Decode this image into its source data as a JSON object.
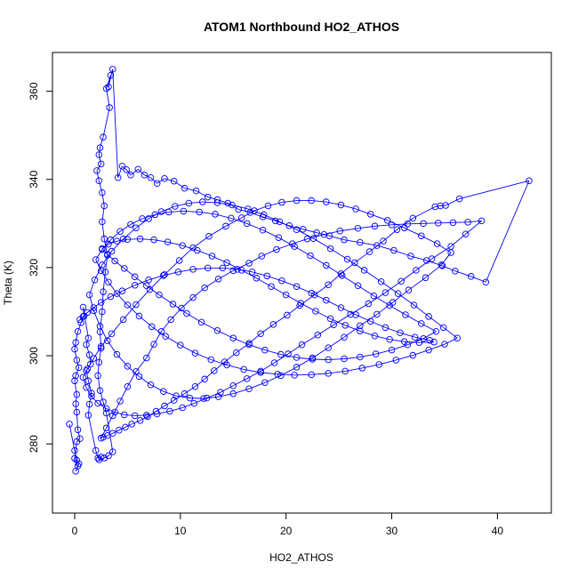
{
  "chart_data": {
    "type": "line",
    "title": "ATOM1 Northbound HO2_ATHOS",
    "xlabel": "HO2_ATHOS",
    "ylabel": "Theta (K)",
    "xlim": [
      -2.1,
      45.1
    ],
    "ylim": [
      264.3,
      368.8
    ],
    "xticks": [
      "0",
      "10",
      "20",
      "30",
      "40"
    ],
    "yticks": [
      "280",
      "300",
      "320",
      "340",
      "360"
    ],
    "grid": false,
    "legend": "none",
    "series_color": "#0000ff",
    "series": [
      {
        "markers": "open-circle",
        "x": [
          -0.5,
          0.0,
          0.2,
          0.4,
          0.1,
          0.3,
          0.0,
          0.2,
          0.5,
          0.3,
          0.2,
          0.1,
          0.2,
          0.0,
          0.1,
          0.4,
          0.2,
          0.0,
          0.1,
          0.3,
          0.6,
          0.9,
          0.8,
          1.3,
          1.1,
          1.4,
          1.5,
          1.1,
          1.3,
          1.6,
          1.4,
          1.3,
          2.0,
          2.2,
          2.5,
          2.3,
          2.8,
          3.2,
          3.6,
          3.0,
          2.7,
          2.4,
          2.2,
          2.3,
          2.5,
          2.4,
          2.6,
          2.7,
          2.9,
          3.1,
          2.8,
          2.6,
          2.8,
          2.6,
          2.3,
          2.1,
          2.5,
          2.3,
          2.4,
          2.7,
          3.3,
          3.0,
          3.4,
          3.2,
          3.6,
          4.1,
          4.5,
          4.9,
          5.3,
          6.0,
          6.6,
          7.2,
          7.8,
          8.5,
          9.4,
          10.4,
          11.5,
          12.6,
          13.5,
          14.5,
          15.5,
          16.6,
          17.8,
          19.0,
          20.3,
          21.6,
          22.9,
          24.1,
          25.5,
          27.0,
          28.6,
          30.2,
          31.8,
          33.3,
          34.8,
          36.0,
          37.5,
          38.9,
          43.0,
          36.4,
          35.1,
          34.6,
          34.1,
          32.0,
          30.5,
          29.2,
          27.9,
          26.5,
          25.2,
          24.0,
          22.7,
          21.3,
          20.1,
          18.8,
          17.6,
          16.5,
          15.3,
          14.2,
          13.2,
          12.3,
          11.4,
          10.4,
          9.4,
          8.5,
          7.7,
          6.9,
          6.2,
          5.4,
          4.8,
          4.2,
          3.6,
          3.1,
          2.7,
          2.5,
          3.0,
          3.6,
          4.3,
          5.0,
          5.8,
          6.8,
          7.5,
          8.2,
          9.1,
          10.1,
          11.2,
          12.3,
          13.6,
          15.0,
          16.5,
          17.7,
          19.1,
          20.6,
          22.0,
          23.6,
          25.1,
          26.8,
          28.4,
          30.0,
          31.5,
          33.0,
          34.4,
          35.8,
          37.2,
          38.5,
          37.0,
          35.6,
          33.8,
          32.3,
          30.9,
          29.4,
          27.8,
          26.1,
          24.5,
          23.0,
          21.5,
          20.2,
          18.9,
          17.6,
          16.3,
          15.0,
          13.8,
          12.5,
          11.3,
          10.2,
          9.0,
          7.8,
          6.8,
          5.7,
          4.7,
          3.8,
          3.0,
          2.2,
          1.6,
          1.1,
          0.8,
          1.2,
          1.8,
          2.5,
          3.5,
          4.6,
          5.8,
          7.1,
          8.5,
          9.9,
          11.2,
          12.7,
          14.3,
          15.8,
          17.0,
          18.3,
          19.6,
          21.0,
          22.4,
          23.8,
          25.2,
          26.6,
          28.0,
          29.6,
          31.2,
          32.8,
          34.3,
          35.6,
          34.7,
          33.2,
          31.6,
          30.1,
          28.6,
          27.0,
          25.5,
          24.0,
          22.5,
          21.0,
          19.5,
          18.0,
          16.5,
          15.0,
          13.6,
          12.2,
          10.9,
          9.6,
          8.4,
          7.2,
          6.1,
          5.0,
          4.0,
          3.1,
          2.4,
          1.8,
          1.4,
          1.9,
          2.6,
          3.5,
          4.6,
          5.8,
          7.0,
          8.2,
          9.5,
          10.8,
          12.1,
          13.5,
          14.9,
          16.4,
          17.9,
          19.4,
          21.0,
          22.6,
          24.2,
          25.8,
          27.4,
          29.0,
          30.6,
          32.1,
          33.5,
          34.9,
          36.2,
          35.0,
          33.5,
          32.0,
          30.4,
          28.8,
          27.2,
          25.6,
          24.0,
          22.4,
          20.8,
          19.2,
          17.6,
          16.0,
          14.4,
          12.9,
          11.4,
          10.0,
          8.6,
          7.3,
          6.1,
          5.0,
          4.0,
          3.2,
          2.5,
          2.0,
          2.6,
          3.4,
          4.3,
          5.3,
          6.4,
          7.6,
          8.9,
          10.3,
          11.8,
          13.3,
          14.8,
          16.3,
          17.8,
          19.3,
          20.8,
          22.3,
          23.8,
          25.3,
          26.8,
          28.3,
          29.8,
          31.3,
          32.8,
          34.2,
          33.0,
          31.5,
          30.0,
          28.5,
          27.0,
          25.5,
          24.0,
          22.5,
          21.0,
          19.5,
          18.0,
          16.5,
          15.0,
          13.5,
          12.0,
          10.6,
          9.3,
          8.0,
          6.8,
          5.7,
          4.7,
          3.8,
          3.1,
          2.6,
          3.2,
          4.0,
          5.0,
          6.2,
          7.5,
          8.8,
          10.2,
          11.6,
          13.0,
          14.4,
          15.8,
          17.2,
          18.6,
          20.0,
          21.4,
          22.8,
          24.2,
          25.6,
          27.0,
          28.4,
          29.8,
          31.2,
          32.6,
          34.0,
          33.6,
          32.2,
          30.8,
          29.4,
          28.0,
          26.6,
          25.2,
          23.8,
          22.4,
          21.0,
          19.6,
          18.2,
          16.8,
          15.4,
          14.0,
          12.6,
          11.2,
          9.8,
          8.4,
          7.0,
          5.7,
          4.5,
          3.4,
          2.5,
          1.8,
          1.2,
          0.8,
          0.5
        ],
        "y": [
          284.5,
          278.5,
          276.3,
          275.5,
          273.8,
          275.0,
          276.7,
          280.5,
          281.2,
          283.2,
          287.2,
          289.1,
          291.2,
          294.3,
          295.5,
          297.3,
          299.0,
          301.5,
          303.0,
          305.5,
          307.5,
          309.0,
          311.0,
          304.0,
          302.5,
          300.2,
          298.1,
          296.6,
          294.3,
          291.5,
          289.0,
          286.5,
          278.5,
          276.8,
          277.0,
          276.4,
          276.8,
          277.3,
          278.2,
          287.0,
          289.5,
          292.1,
          295.5,
          298.5,
          301.7,
          305.4,
          310.0,
          314.5,
          319.0,
          322.8,
          326.5,
          330.4,
          334.0,
          337.0,
          339.7,
          342.0,
          343.5,
          345.6,
          347.2,
          349.6,
          356.3,
          360.6,
          363.6,
          361.0,
          365.0,
          340.4,
          343.0,
          342.2,
          341.0,
          342.3,
          341.0,
          340.4,
          339.1,
          340.2,
          339.6,
          338.0,
          337.4,
          336.0,
          335.4,
          334.6,
          333.2,
          332.5,
          331.5,
          330.6,
          329.5,
          328.7,
          327.9,
          327.2,
          326.3,
          325.7,
          325.0,
          323.9,
          322.6,
          321.6,
          320.4,
          319.2,
          318.0,
          316.7,
          339.7,
          335.6,
          334.1,
          334.0,
          333.8,
          331.2,
          328.6,
          326.0,
          323.6,
          321.1,
          318.6,
          316.1,
          313.8,
          311.4,
          309.2,
          307.1,
          305.0,
          302.8,
          300.7,
          298.6,
          296.6,
          294.7,
          293.0,
          291.4,
          289.9,
          288.6,
          287.4,
          286.2,
          285.3,
          284.5,
          283.8,
          283.1,
          282.4,
          281.9,
          281.5,
          281.3,
          283.6,
          286.4,
          289.7,
          293.0,
          296.4,
          299.5,
          302.6,
          305.5,
          308.2,
          310.8,
          313.2,
          315.4,
          317.4,
          319.3,
          321.0,
          322.6,
          324.1,
          325.4,
          326.5,
          327.5,
          328.3,
          328.9,
          329.4,
          329.7,
          329.9,
          330.0,
          330.1,
          330.2,
          330.3,
          330.6,
          327.6,
          324.8,
          322.0,
          319.4,
          316.9,
          314.3,
          311.8,
          309.4,
          307.0,
          304.7,
          302.5,
          300.4,
          298.4,
          296.5,
          294.8,
          293.2,
          291.7,
          290.4,
          289.2,
          288.2,
          287.4,
          286.8,
          286.5,
          286.4,
          286.6,
          287.2,
          288.0,
          289.2,
          290.8,
          292.8,
          295.1,
          297.0,
          299.4,
          302.1,
          305.0,
          308.2,
          311.6,
          315.0,
          318.4,
          321.6,
          324.5,
          327.1,
          329.4,
          331.3,
          332.9,
          334.0,
          334.8,
          335.2,
          335.2,
          334.9,
          334.2,
          333.3,
          332.1,
          330.7,
          329.0,
          327.2,
          325.4,
          323.4,
          320.6,
          317.7,
          314.9,
          312.1,
          309.4,
          306.8,
          304.2,
          301.8,
          299.5,
          297.4,
          295.5,
          293.9,
          292.5,
          291.4,
          290.7,
          290.3,
          290.4,
          290.9,
          291.9,
          293.4,
          295.3,
          297.6,
          300.3,
          303.4,
          306.7,
          310.2,
          313.8,
          317.2,
          320.6,
          323.7,
          326.5,
          329.0,
          331.1,
          332.7,
          333.9,
          334.6,
          334.9,
          334.7,
          334.2,
          333.3,
          332.0,
          330.4,
          328.6,
          326.6,
          324.3,
          321.9,
          319.4,
          316.8,
          314.1,
          311.5,
          308.9,
          306.4,
          304.0,
          302.6,
          301.3,
          300.1,
          299.0,
          298.0,
          297.2,
          296.5,
          296.0,
          295.7,
          295.6,
          295.8,
          296.2,
          296.9,
          297.9,
          299.1,
          300.6,
          302.4,
          304.4,
          306.6,
          309.0,
          311.5,
          314.1,
          316.7,
          319.3,
          321.8,
          324.1,
          326.3,
          328.2,
          329.8,
          331.1,
          332.0,
          332.6,
          332.8,
          332.6,
          332.1,
          331.2,
          330.0,
          328.5,
          326.8,
          324.8,
          322.7,
          320.5,
          318.2,
          315.9,
          313.6,
          311.4,
          309.3,
          307.3,
          305.5,
          303.9,
          302.5,
          301.3,
          300.4,
          299.7,
          299.3,
          299.1,
          299.2,
          299.6,
          300.3,
          301.3,
          302.5,
          304.0,
          305.7,
          307.6,
          309.6,
          311.7,
          313.8,
          315.9,
          317.9,
          319.8,
          321.5,
          323.0,
          324.3,
          325.3,
          326.0,
          326.4,
          326.5,
          326.3,
          325.8,
          325.0,
          323.9,
          322.6,
          321.1,
          319.4,
          317.6,
          315.7,
          313.8,
          311.9,
          310.1,
          308.4,
          306.9,
          305.6,
          304.5,
          303.7,
          303.2,
          303.0,
          303.1,
          303.5,
          304.2,
          305.2,
          306.4,
          307.8,
          309.3,
          310.9,
          312.6,
          314.2,
          315.7,
          317.0,
          318.1,
          319.0,
          319.6,
          319.9,
          319.9,
          319.6,
          319.0,
          318.2,
          317.2,
          316.0,
          314.7,
          313.4,
          312.1,
          310.9,
          309.8,
          308.9,
          308.2
        ]
      }
    ]
  }
}
